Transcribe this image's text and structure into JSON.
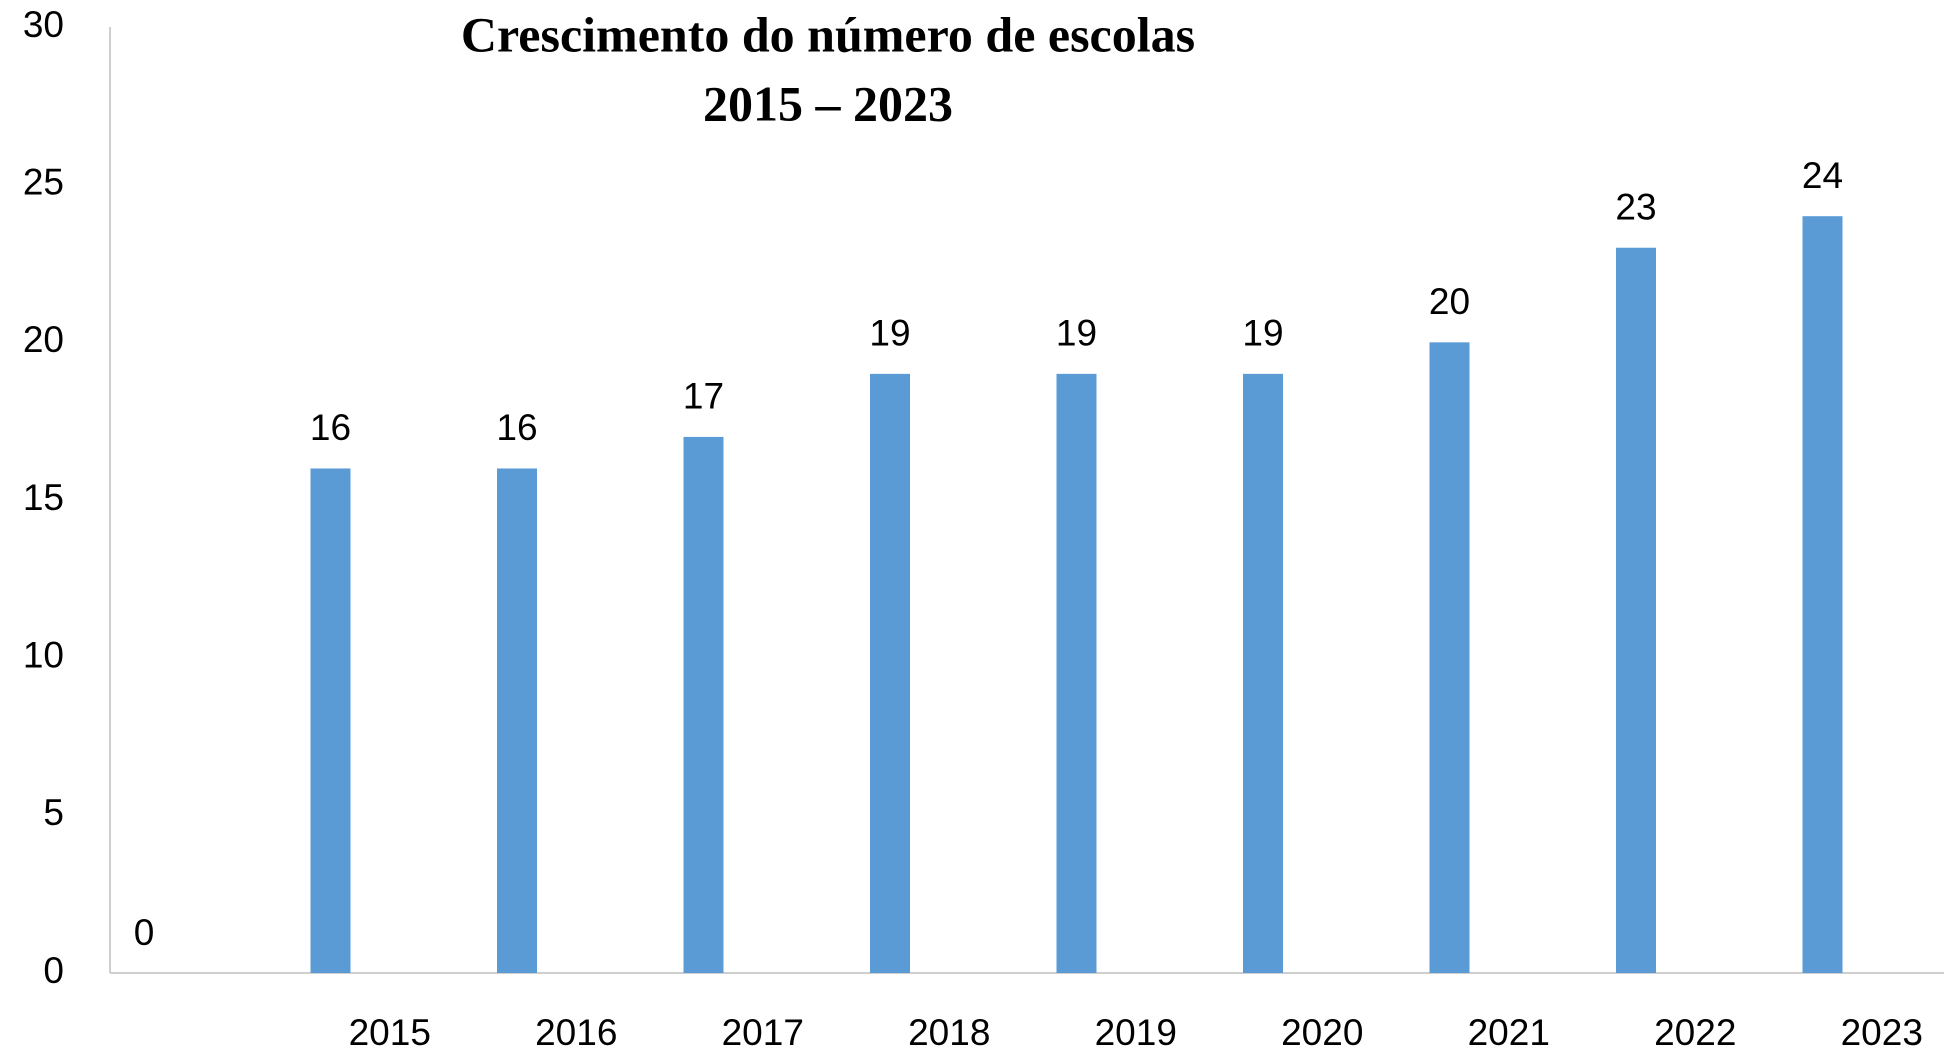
{
  "chart_data": {
    "type": "bar",
    "title": "Crescimento do número de escolas",
    "subtitle": "2015 – 2023",
    "categories": [
      null,
      "2015",
      "2016",
      "2017",
      "2018",
      "2019",
      "2020",
      "2021",
      "2022",
      "2023"
    ],
    "values": [
      0,
      16,
      16,
      17,
      19,
      19,
      19,
      20,
      23,
      24
    ],
    "color": "#5b9bd5",
    "ylim": [
      0,
      30
    ],
    "yticks": [
      0,
      5,
      10,
      15,
      20,
      25,
      30
    ],
    "grid": false
  }
}
